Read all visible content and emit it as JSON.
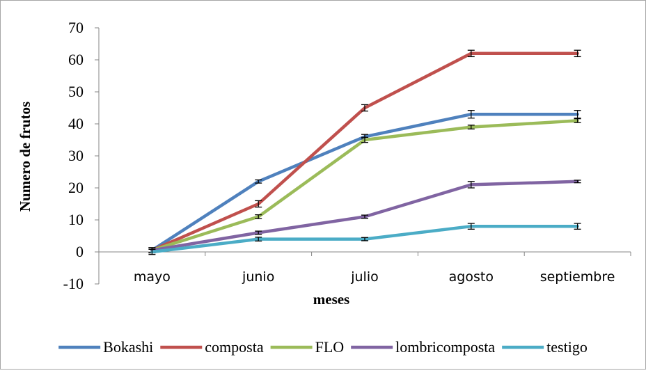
{
  "chart_data": {
    "type": "line",
    "title": "",
    "xlabel": "meses",
    "ylabel": "Numero de frutos",
    "categories": [
      "mayo",
      "junio",
      "julio",
      "agosto",
      "septiembre"
    ],
    "ylim": [
      -10,
      70
    ],
    "yticks": [
      -10,
      0,
      10,
      20,
      30,
      40,
      50,
      60,
      70
    ],
    "grid": false,
    "legend": "bottom",
    "error_bars": true,
    "series": [
      {
        "name": "Bokashi",
        "color": "#4f81bd",
        "values": [
          0.5,
          22,
          36,
          43,
          43
        ],
        "errors": [
          0.8,
          0.5,
          0.7,
          1.2,
          1.2
        ]
      },
      {
        "name": "composta",
        "color": "#c0504d",
        "values": [
          0.5,
          15,
          45,
          62,
          62
        ],
        "errors": [
          0.8,
          1.0,
          1.0,
          1.0,
          1.0
        ]
      },
      {
        "name": "FLO",
        "color": "#9bbb59",
        "values": [
          0.5,
          11,
          35,
          39,
          41
        ],
        "errors": [
          0.8,
          0.6,
          0.8,
          0.6,
          0.6
        ]
      },
      {
        "name": "lombricomposta",
        "color": "#8064a2",
        "values": [
          0.5,
          6,
          11,
          21,
          22
        ],
        "errors": [
          0.8,
          0.5,
          0.5,
          1.0,
          0.4
        ]
      },
      {
        "name": "testigo",
        "color": "#4bacc6",
        "values": [
          0,
          4,
          4,
          8,
          8
        ],
        "errors": [
          0.8,
          0.6,
          0.5,
          0.9,
          0.9
        ]
      }
    ]
  }
}
